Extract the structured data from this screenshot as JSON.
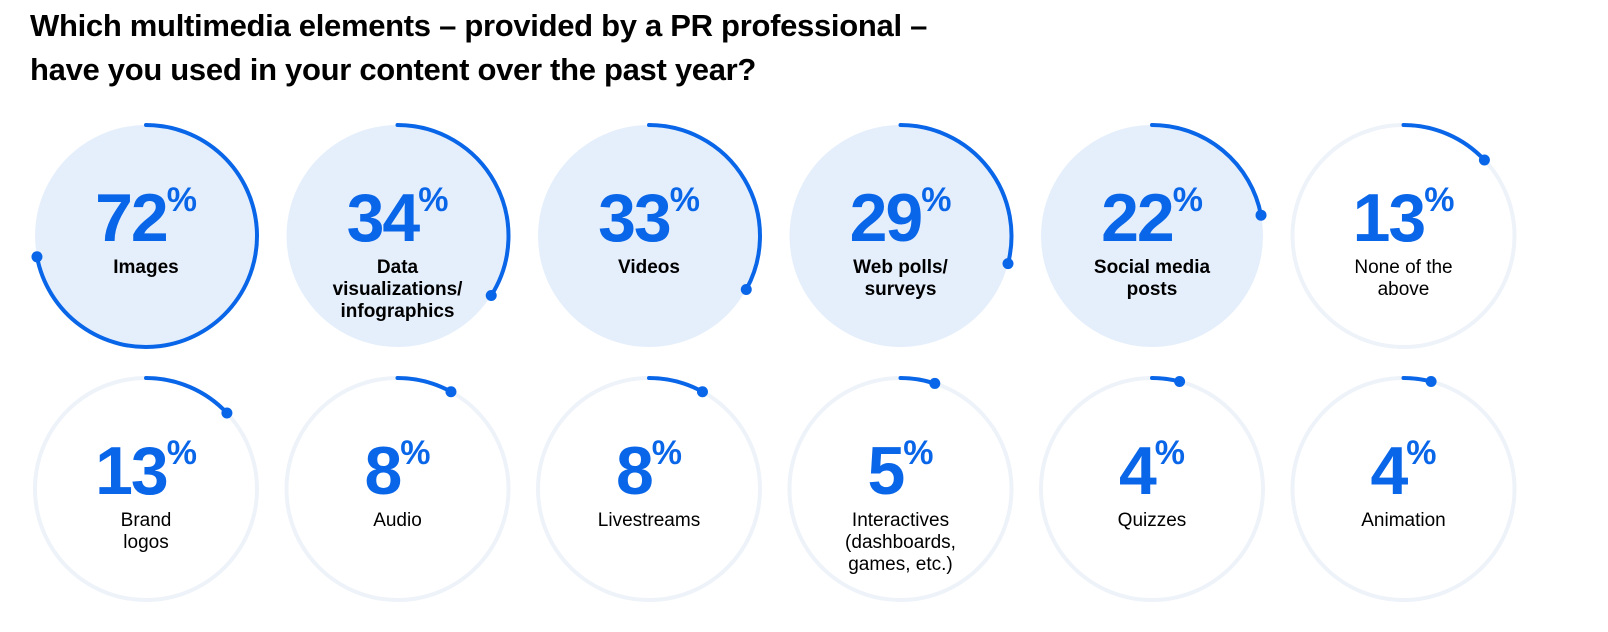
{
  "title_lines": [
    "Which multimedia elements – provided by a PR professional –",
    "have you used in your content over the past year?"
  ],
  "colors": {
    "accent": "#0A66E8",
    "highlight_fill": "#E5EFFC",
    "ring": "#EEF3FA",
    "text": "#000000"
  },
  "chart_data": {
    "type": "radial-progress",
    "unit": "%",
    "items": [
      {
        "label": [
          "Images"
        ],
        "value": 72,
        "highlight": true
      },
      {
        "label": [
          "Data",
          "visualizations/",
          "infographics"
        ],
        "value": 34,
        "highlight": true
      },
      {
        "label": [
          "Videos"
        ],
        "value": 33,
        "highlight": true
      },
      {
        "label": [
          "Web polls/",
          "surveys"
        ],
        "value": 29,
        "highlight": true
      },
      {
        "label": [
          "Social media",
          "posts"
        ],
        "value": 22,
        "highlight": true
      },
      {
        "label": [
          "None of the",
          "above"
        ],
        "value": 13,
        "highlight": false
      },
      {
        "label": [
          "Brand",
          "logos"
        ],
        "value": 13,
        "highlight": false
      },
      {
        "label": [
          "Audio"
        ],
        "value": 8,
        "highlight": false
      },
      {
        "label": [
          "Livestreams"
        ],
        "value": 8,
        "highlight": false
      },
      {
        "label": [
          "Interactives",
          "(dashboards,",
          "games, etc.)"
        ],
        "value": 5,
        "highlight": false
      },
      {
        "label": [
          "Quizzes"
        ],
        "value": 4,
        "highlight": false
      },
      {
        "label": [
          "Animation"
        ],
        "value": 4,
        "highlight": false
      }
    ]
  }
}
